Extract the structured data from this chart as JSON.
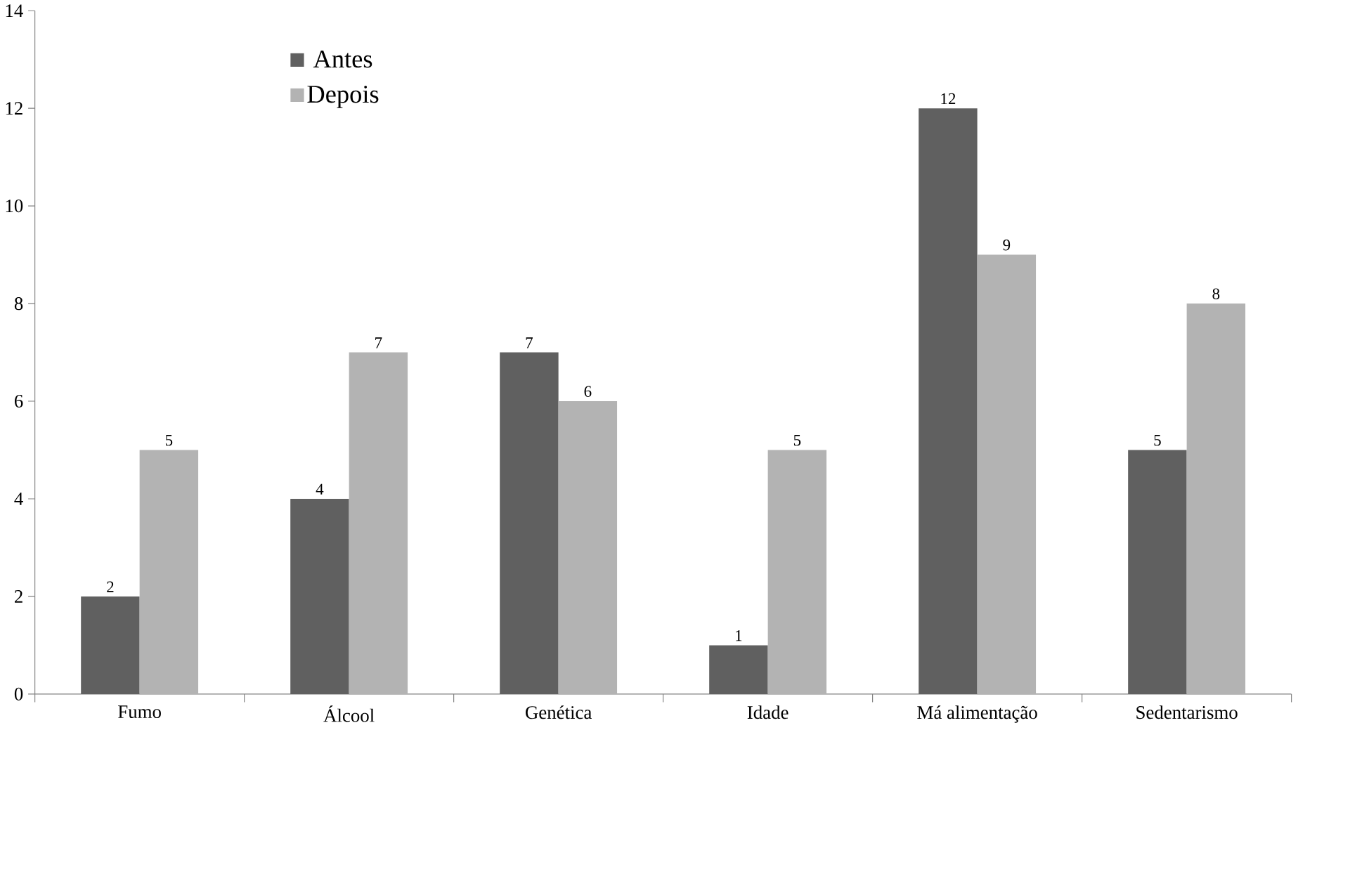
{
  "chart_data": {
    "type": "bar",
    "categories": [
      "Fumo",
      "Álcool",
      "Genética",
      "Idade",
      "Má alimentação",
      "Sedentarismo"
    ],
    "series": [
      {
        "name": "Antes",
        "color": "#606060",
        "values": [
          2,
          4,
          7,
          1,
          12,
          5
        ]
      },
      {
        "name": "Depois",
        "color": "#b3b3b3",
        "values": [
          5,
          7,
          6,
          5,
          9,
          8
        ]
      }
    ],
    "ylim": [
      0,
      14
    ],
    "yticks": [
      0,
      2,
      4,
      6,
      8,
      10,
      12,
      14
    ],
    "grid": false,
    "legend": "top left",
    "data_labels": true
  }
}
